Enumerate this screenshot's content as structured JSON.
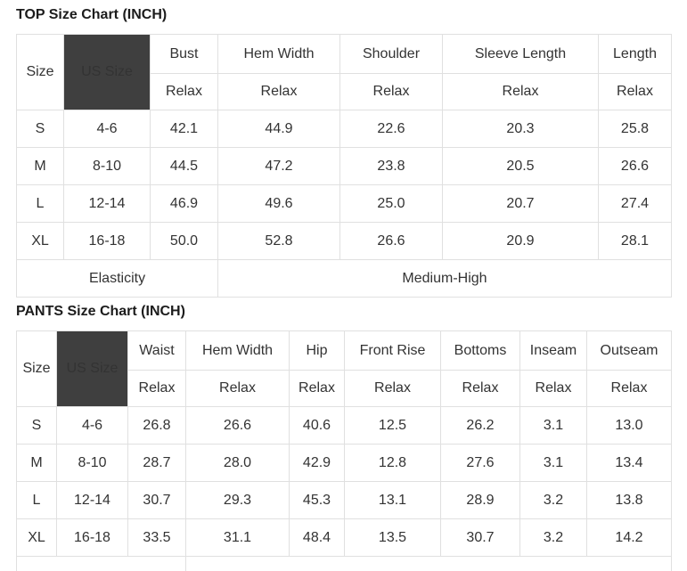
{
  "colors": {
    "page_background": "#ffffff",
    "header_dark_bg": "#3f3f3f",
    "header_dark_text": "#ffffff",
    "table_border": "#e0e0e0",
    "title_text": "#1c1c1c",
    "cell_text": "#333333"
  },
  "top_chart": {
    "title": "TOP Size Chart (INCH)",
    "size_header": "Size",
    "us_size_header": "US Size",
    "fit_row_label": "Relax",
    "measure_columns": [
      "Bust",
      "Hem Width",
      "Shoulder",
      "Sleeve Length",
      "Length"
    ],
    "rows": [
      {
        "size": "S",
        "us_size": "4-6",
        "values": [
          "42.1",
          "44.9",
          "22.6",
          "20.3",
          "25.8"
        ]
      },
      {
        "size": "M",
        "us_size": "8-10",
        "values": [
          "44.5",
          "47.2",
          "23.8",
          "20.5",
          "26.6"
        ]
      },
      {
        "size": "L",
        "us_size": "12-14",
        "values": [
          "46.9",
          "49.6",
          "25.0",
          "20.7",
          "27.4"
        ]
      },
      {
        "size": "XL",
        "us_size": "16-18",
        "values": [
          "50.0",
          "52.8",
          "26.6",
          "20.9",
          "28.1"
        ]
      }
    ],
    "footer": {
      "label": "Elasticity",
      "value": "Medium-High"
    }
  },
  "pants_chart": {
    "title": "PANTS Size Chart (INCH)",
    "size_header": "Size",
    "us_size_header": "US Size",
    "fit_row_label": "Relax",
    "measure_columns": [
      "Waist",
      "Hem Width",
      "Hip",
      "Front Rise",
      "Bottoms",
      "Inseam",
      "Outseam"
    ],
    "rows": [
      {
        "size": "S",
        "us_size": "4-6",
        "values": [
          "26.8",
          "26.6",
          "40.6",
          "12.5",
          "26.2",
          "3.1",
          "13.0"
        ]
      },
      {
        "size": "M",
        "us_size": "8-10",
        "values": [
          "28.7",
          "28.0",
          "42.9",
          "12.8",
          "27.6",
          "3.1",
          "13.4"
        ]
      },
      {
        "size": "L",
        "us_size": "12-14",
        "values": [
          "30.7",
          "29.3",
          "45.3",
          "13.1",
          "28.9",
          "3.2",
          "13.8"
        ]
      },
      {
        "size": "XL",
        "us_size": "16-18",
        "values": [
          "33.5",
          "31.1",
          "48.4",
          "13.5",
          "30.7",
          "3.2",
          "14.2"
        ]
      }
    ],
    "footer": {
      "label": "",
      "value": ""
    }
  }
}
